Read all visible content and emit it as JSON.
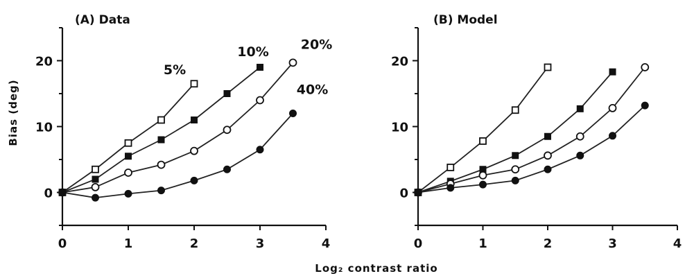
{
  "figure": {
    "xlabel": "Log₂ contrast ratio"
  },
  "chart_data": [
    {
      "type": "line",
      "title": "(A) Data",
      "xlabel": "Log₂ contrast ratio",
      "ylabel": "Bias (deg)",
      "xlim": [
        0,
        4
      ],
      "ylim": [
        -5,
        25
      ],
      "xticks": [
        0,
        1,
        2,
        3,
        4
      ],
      "yticks": [
        0,
        10,
        20
      ],
      "grid": false,
      "series": [
        {
          "name": "5%",
          "marker": "open-square",
          "x": [
            0,
            0.5,
            1,
            1.5,
            2
          ],
          "values": [
            0,
            3.5,
            7.5,
            11,
            16.5
          ]
        },
        {
          "name": "10%",
          "marker": "filled-square",
          "x": [
            0,
            0.5,
            1,
            1.5,
            2,
            2.5,
            3
          ],
          "values": [
            0,
            2,
            5.5,
            8,
            11,
            15,
            19
          ]
        },
        {
          "name": "20%",
          "marker": "open-circle",
          "x": [
            0,
            0.5,
            1,
            1.5,
            2,
            2.5,
            3,
            3.5
          ],
          "values": [
            0,
            0.8,
            3,
            4.2,
            6.3,
            9.5,
            14,
            19.7
          ]
        },
        {
          "name": "40%",
          "marker": "filled-circle",
          "x": [
            0,
            0.5,
            1,
            1.5,
            2,
            2.5,
            3,
            3.5
          ],
          "values": [
            0,
            -0.8,
            -0.2,
            0.3,
            1.8,
            3.5,
            6.5,
            12
          ]
        }
      ]
    },
    {
      "type": "line",
      "title": "(B) Model",
      "xlabel": "Log₂ contrast ratio",
      "ylabel": "",
      "xlim": [
        0,
        4
      ],
      "ylim": [
        -5,
        25
      ],
      "xticks": [
        0,
        1,
        2,
        3,
        4
      ],
      "yticks": [
        0,
        10,
        20
      ],
      "grid": false,
      "series": [
        {
          "marker": "open-square",
          "x": [
            0,
            0.5,
            1,
            1.5,
            2
          ],
          "values": [
            0,
            3.8,
            7.8,
            12.5,
            19
          ]
        },
        {
          "marker": "filled-square",
          "x": [
            0,
            0.5,
            1,
            1.5,
            2,
            2.5,
            3
          ],
          "values": [
            0,
            1.7,
            3.5,
            5.6,
            8.5,
            12.7,
            18.3
          ]
        },
        {
          "marker": "open-circle",
          "x": [
            0,
            0.5,
            1,
            1.5,
            2,
            2.5,
            3,
            3.5
          ],
          "values": [
            0,
            1.3,
            2.6,
            3.5,
            5.6,
            8.5,
            12.8,
            19
          ]
        },
        {
          "marker": "filled-circle",
          "x": [
            0,
            0.5,
            1,
            1.5,
            2,
            2.5,
            3,
            3.5
          ],
          "values": [
            0,
            0.7,
            1.2,
            1.8,
            3.5,
            5.6,
            8.6,
            13.2
          ]
        }
      ]
    }
  ]
}
